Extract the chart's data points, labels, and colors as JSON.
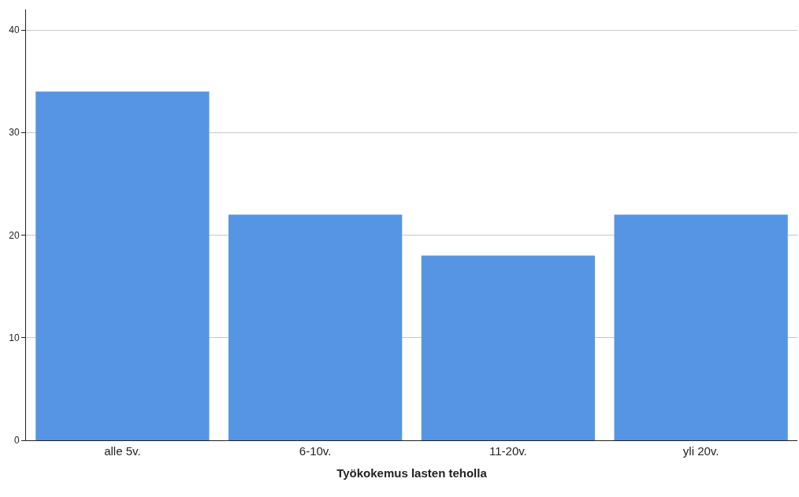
{
  "chart_data": {
    "type": "bar",
    "xlabel": "Työkokemus lasten teholla",
    "categories": [
      "alle 5v.",
      "6-10v.",
      "11-20v.",
      "yli 20v."
    ],
    "values": [
      34,
      22,
      18,
      22
    ],
    "color": "#5595e3",
    "ylim": [
      0,
      42
    ],
    "yticks": [
      0,
      10,
      20,
      30,
      40
    ],
    "grid": "y"
  }
}
